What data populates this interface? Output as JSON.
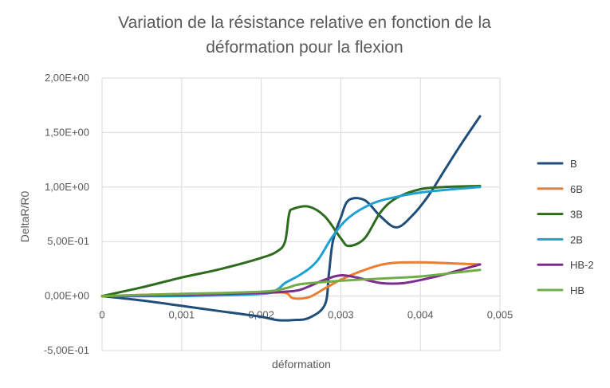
{
  "chart_data": {
    "type": "line",
    "title_line1": "Variation de la résistance relative en fonction de la",
    "title_line2": "déformation pour la flexion",
    "xlabel": "déformation",
    "ylabel": "DeltaR/R0",
    "xlim": [
      0,
      0.005
    ],
    "ylim": [
      -0.5,
      2.0
    ],
    "x_ticks": [
      {
        "value": 0,
        "label": "0"
      },
      {
        "value": 0.001,
        "label": "0,001"
      },
      {
        "value": 0.002,
        "label": "0,002"
      },
      {
        "value": 0.003,
        "label": "0,003"
      },
      {
        "value": 0.004,
        "label": "0,004"
      },
      {
        "value": 0.005,
        "label": "0,005"
      }
    ],
    "y_ticks": [
      {
        "value": -0.5,
        "label": "-5,00E-01"
      },
      {
        "value": 0,
        "label": "0,00E+00"
      },
      {
        "value": 0.5,
        "label": "5,00E-01"
      },
      {
        "value": 1.0,
        "label": "1,00E+00"
      },
      {
        "value": 1.5,
        "label": "1,50E+00"
      },
      {
        "value": 2.0,
        "label": "2,00E+00"
      }
    ],
    "grid": "vertical and horizontal major gridlines",
    "legend_position": "right",
    "series": [
      {
        "name": "B",
        "color": "#1f4e79",
        "points": [
          [
            0,
            0
          ],
          [
            0.0005,
            -0.04
          ],
          [
            0.001,
            -0.09
          ],
          [
            0.0015,
            -0.14
          ],
          [
            0.002,
            -0.19
          ],
          [
            0.0022,
            -0.22
          ],
          [
            0.0024,
            -0.22
          ],
          [
            0.0026,
            -0.2
          ],
          [
            0.0028,
            -0.08
          ],
          [
            0.00285,
            0.2
          ],
          [
            0.0029,
            0.5
          ],
          [
            0.003,
            0.72
          ],
          [
            0.0031,
            0.88
          ],
          [
            0.0033,
            0.88
          ],
          [
            0.0035,
            0.73
          ],
          [
            0.0037,
            0.63
          ],
          [
            0.0039,
            0.74
          ],
          [
            0.0041,
            0.92
          ],
          [
            0.0043,
            1.15
          ],
          [
            0.0045,
            1.38
          ],
          [
            0.00475,
            1.65
          ]
        ]
      },
      {
        "name": "6B",
        "color": "#ed7d31",
        "points": [
          [
            0,
            0
          ],
          [
            0.001,
            0.02
          ],
          [
            0.002,
            0.03
          ],
          [
            0.0023,
            0.03
          ],
          [
            0.0024,
            -0.02
          ],
          [
            0.0026,
            -0.01
          ],
          [
            0.0028,
            0.07
          ],
          [
            0.003,
            0.15
          ],
          [
            0.0033,
            0.24
          ],
          [
            0.0036,
            0.3
          ],
          [
            0.004,
            0.31
          ],
          [
            0.0044,
            0.3
          ],
          [
            0.00475,
            0.29
          ]
        ]
      },
      {
        "name": "3B",
        "color": "#2e6b1e",
        "points": [
          [
            0,
            0
          ],
          [
            0.0005,
            0.08
          ],
          [
            0.001,
            0.17
          ],
          [
            0.0015,
            0.25
          ],
          [
            0.002,
            0.35
          ],
          [
            0.0022,
            0.41
          ],
          [
            0.0023,
            0.5
          ],
          [
            0.00235,
            0.75
          ],
          [
            0.0024,
            0.8
          ],
          [
            0.0026,
            0.82
          ],
          [
            0.0028,
            0.73
          ],
          [
            0.003,
            0.53
          ],
          [
            0.0031,
            0.46
          ],
          [
            0.0033,
            0.53
          ],
          [
            0.0035,
            0.77
          ],
          [
            0.0037,
            0.9
          ],
          [
            0.004,
            0.98
          ],
          [
            0.0043,
            1.0
          ],
          [
            0.00475,
            1.01
          ]
        ]
      },
      {
        "name": "2B",
        "color": "#1fa1d4",
        "points": [
          [
            0,
            0
          ],
          [
            0.001,
            0.0
          ],
          [
            0.002,
            0.02
          ],
          [
            0.0022,
            0.06
          ],
          [
            0.0023,
            0.12
          ],
          [
            0.0025,
            0.2
          ],
          [
            0.0027,
            0.32
          ],
          [
            0.0029,
            0.55
          ],
          [
            0.0031,
            0.72
          ],
          [
            0.0034,
            0.85
          ],
          [
            0.0037,
            0.91
          ],
          [
            0.004,
            0.95
          ],
          [
            0.0044,
            0.98
          ],
          [
            0.00475,
            1.0
          ]
        ]
      },
      {
        "name": "HB-2",
        "color": "#7b2d8e",
        "points": [
          [
            0,
            0
          ],
          [
            0.001,
            0.01
          ],
          [
            0.002,
            0.03
          ],
          [
            0.0023,
            0.04
          ],
          [
            0.0025,
            0.06
          ],
          [
            0.0028,
            0.15
          ],
          [
            0.003,
            0.19
          ],
          [
            0.0032,
            0.17
          ],
          [
            0.0035,
            0.12
          ],
          [
            0.0038,
            0.12
          ],
          [
            0.0042,
            0.18
          ],
          [
            0.0045,
            0.24
          ],
          [
            0.00475,
            0.29
          ]
        ]
      },
      {
        "name": "HB",
        "color": "#70ad47",
        "points": [
          [
            0,
            0
          ],
          [
            0.001,
            0.02
          ],
          [
            0.002,
            0.04
          ],
          [
            0.0023,
            0.07
          ],
          [
            0.0025,
            0.11
          ],
          [
            0.003,
            0.14
          ],
          [
            0.0035,
            0.16
          ],
          [
            0.004,
            0.18
          ],
          [
            0.0045,
            0.22
          ],
          [
            0.00475,
            0.24
          ]
        ]
      }
    ]
  }
}
